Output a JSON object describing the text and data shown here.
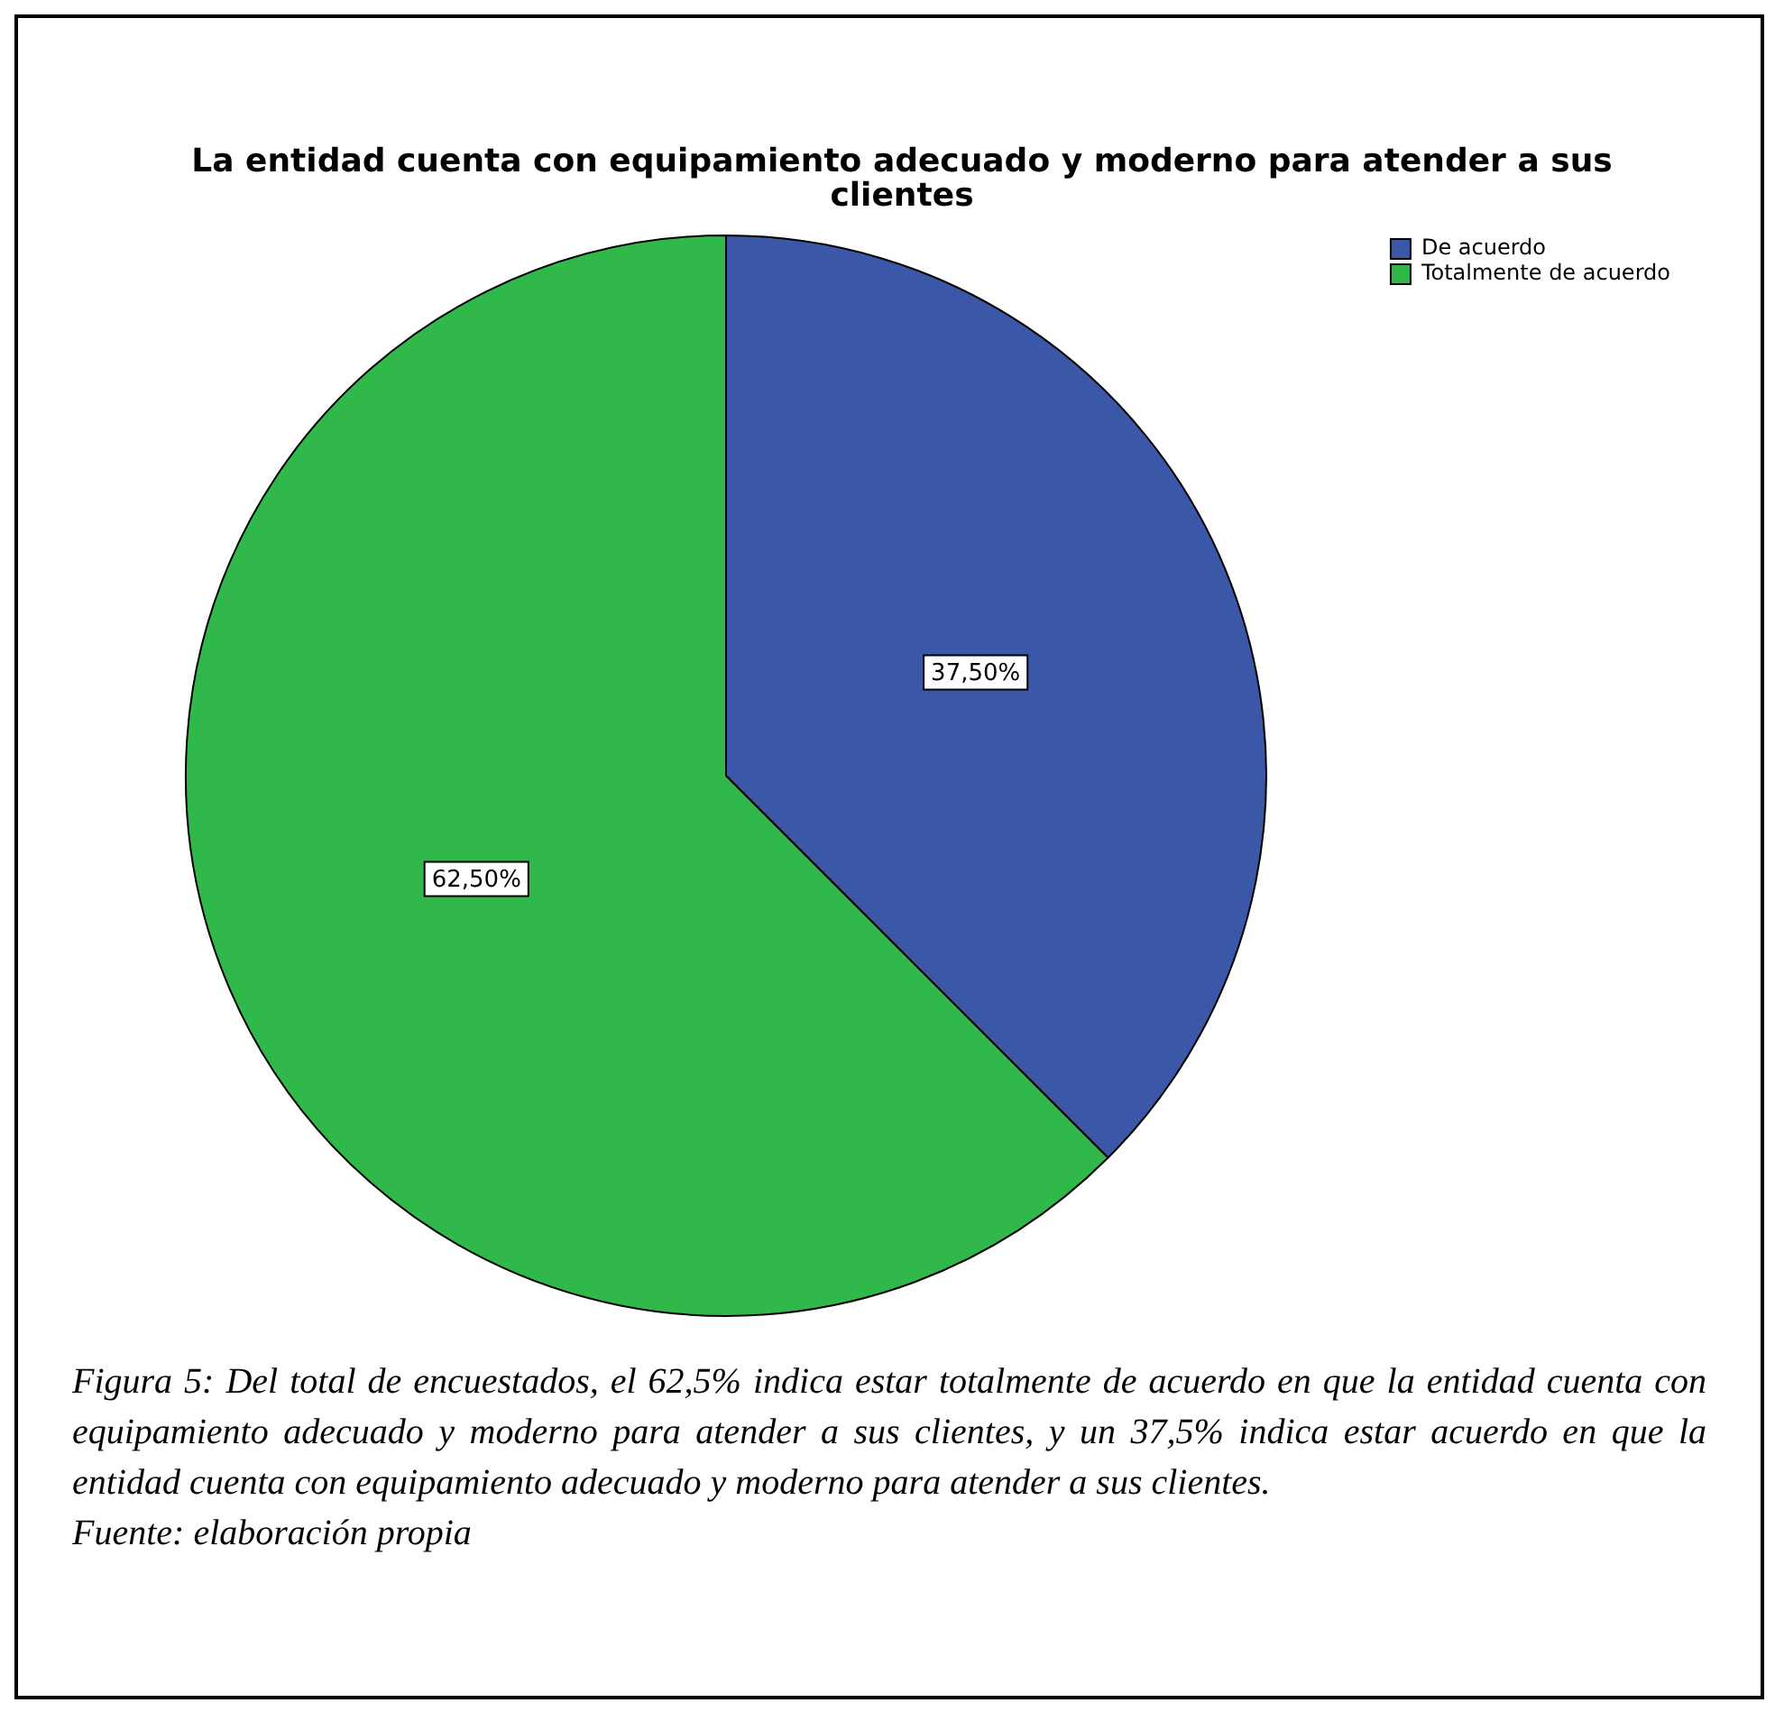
{
  "chart_data": {
    "type": "pie",
    "title": "La entidad cuenta con equipamiento adecuado y moderno para atender a sus clientes",
    "categories": [
      "De acuerdo",
      "Totalmente de acuerdo"
    ],
    "values": [
      37.5,
      62.5
    ],
    "colors": [
      "#3b57a8",
      "#30b84a"
    ],
    "value_labels": [
      "37,50%",
      "62,50%"
    ],
    "legend": "top right",
    "annotations": [
      "Figura 5: Del total de encuestados, el 62,5% indica estar totalmente de acuerdo en que la entidad cuenta con equipamiento adecuado y moderno para atender a sus clientes, y un 37,5% indica estar acuerdo en que la entidad cuenta con equipamiento adecuado y moderno para atender a sus clientes.",
      "Fuente: elaboración propia"
    ]
  }
}
